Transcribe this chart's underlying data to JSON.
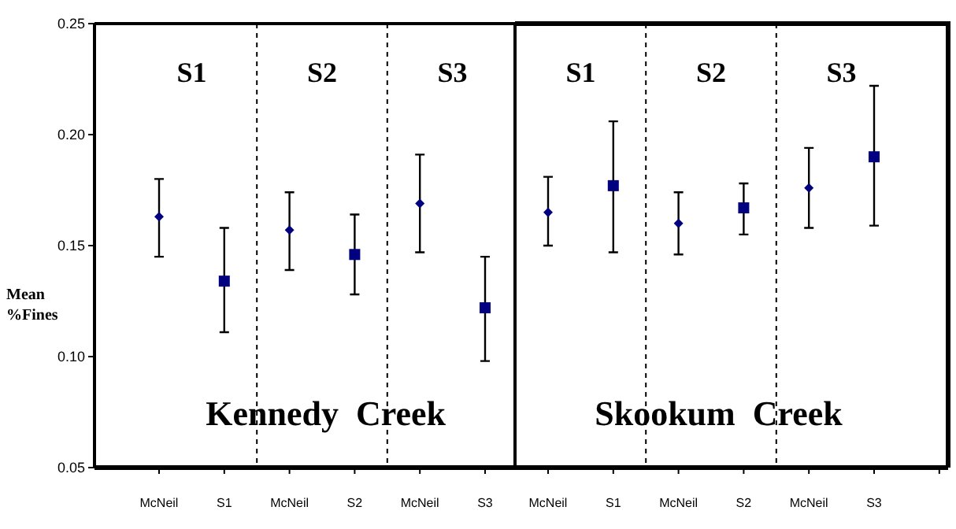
{
  "chart_data": [
    {
      "type": "scatter",
      "ylabel": "Mean %Fines",
      "categories": [
        "McNeil",
        "S1",
        "McNeil",
        "S2",
        "McNeil",
        "S3"
      ],
      "ylim": [
        0.05,
        0.25
      ],
      "yticks": [
        {
          "value": 0.05,
          "label": "0.05"
        },
        {
          "value": 0.1,
          "label": "0.10"
        },
        {
          "value": 0.15,
          "label": "0.15"
        },
        {
          "value": 0.2,
          "label": "0.20"
        },
        {
          "value": 0.25,
          "label": "0.25"
        }
      ],
      "grid": false,
      "series": [
        {
          "color": "#000080",
          "marker": "diamond",
          "values": [
            0.163,
            null,
            0.157,
            null,
            0.169,
            null
          ],
          "errors": [
            [
              0.145,
              0.18
            ],
            null,
            [
              0.139,
              0.174
            ],
            null,
            [
              0.147,
              0.191
            ],
            null
          ]
        },
        {
          "color": "#000080",
          "marker": "square",
          "values": [
            null,
            0.134,
            null,
            0.146,
            null,
            0.122
          ],
          "errors": [
            null,
            [
              0.111,
              0.158
            ],
            null,
            [
              0.128,
              0.164
            ],
            null,
            [
              0.098,
              0.145
            ]
          ]
        }
      ],
      "annotations": [
        "S1",
        "S2",
        "S3",
        "Kennedy  Creek"
      ]
    },
    {
      "type": "scatter",
      "categories": [
        "McNeil",
        "S1",
        "McNeil",
        "S2",
        "McNeil",
        "S3"
      ],
      "ylim": [
        0.05,
        0.25
      ],
      "tick_labels": "x",
      "grid": false,
      "series": [
        {
          "color": "#000080",
          "marker": "diamond",
          "values": [
            0.165,
            null,
            0.16,
            null,
            0.176,
            null
          ],
          "errors": [
            [
              0.15,
              0.181
            ],
            null,
            [
              0.146,
              0.174
            ],
            null,
            [
              0.158,
              0.194
            ],
            null
          ]
        },
        {
          "color": "#000080",
          "marker": "square",
          "values": [
            null,
            0.177,
            null,
            0.167,
            null,
            0.19
          ],
          "errors": [
            null,
            [
              0.147,
              0.206
            ],
            null,
            [
              0.155,
              0.178
            ],
            null,
            [
              0.159,
              0.222
            ]
          ]
        }
      ],
      "annotations": [
        "S1",
        "S2",
        "S3",
        "Skookum  Creek"
      ]
    }
  ]
}
